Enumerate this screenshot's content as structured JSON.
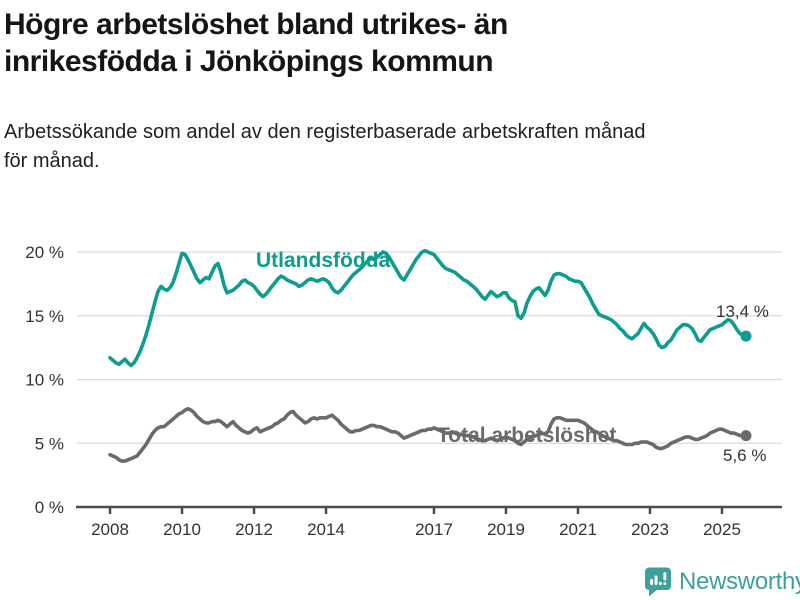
{
  "header": {
    "title_lines": [
      "Högre arbetslöshet bland utrikes- än",
      "inrikesfödda i Jönköpings kommun"
    ],
    "subtitle_lines": [
      "Arbetssökande som andel av den registerbaserade arbetskraften månad",
      "för månad."
    ]
  },
  "chart_data": {
    "type": "line",
    "title": "Högre arbetslöshet bland utrikes- än inrikesfödda i Jönköpings kommun",
    "subtitle": "Arbetssökande som andel av den registerbaserade arbetskraften månad för månad.",
    "unit": "%",
    "xlabel": "",
    "ylabel": "",
    "ylim": [
      0,
      20
    ],
    "x_range_years": [
      2008,
      2025.75
    ],
    "grid": true,
    "legend_position": "inline-annotations",
    "y_ticks": [
      {
        "value": 0,
        "label": "0 %"
      },
      {
        "value": 5,
        "label": "5 %"
      },
      {
        "value": 10,
        "label": "10 %"
      },
      {
        "value": 15,
        "label": "15 %"
      },
      {
        "value": 20,
        "label": "20 %"
      }
    ],
    "x_ticks": [
      {
        "value": 2008,
        "label": "2008"
      },
      {
        "value": 2010,
        "label": "2010"
      },
      {
        "value": 2012,
        "label": "2012"
      },
      {
        "value": 2014,
        "label": "2014"
      },
      {
        "value": 2017,
        "label": "2017"
      },
      {
        "value": 2019,
        "label": "2019"
      },
      {
        "value": 2021,
        "label": "2021"
      },
      {
        "value": 2023,
        "label": "2023"
      },
      {
        "value": 2025,
        "label": "2025"
      }
    ],
    "series": [
      {
        "name": "Utlandsfödda",
        "color": "#0d9c8e",
        "x_start_year": 2008,
        "x_step_months": 1,
        "end_label": "13,4 %",
        "end_value": 13.4,
        "values": [
          11.7,
          11.5,
          11.3,
          11.2,
          11.4,
          11.6,
          11.3,
          11.1,
          11.3,
          11.7,
          12.2,
          12.8,
          13.5,
          14.3,
          15.2,
          16.1,
          16.9,
          17.3,
          17.1,
          17.0,
          17.2,
          17.6,
          18.3,
          19.1,
          19.9,
          19.8,
          19.4,
          18.9,
          18.4,
          17.9,
          17.6,
          17.8,
          18.0,
          17.9,
          18.4,
          18.9,
          19.1,
          18.4,
          17.4,
          16.8,
          16.9,
          17.0,
          17.2,
          17.4,
          17.7,
          17.8,
          17.6,
          17.5,
          17.3,
          17.0,
          16.7,
          16.5,
          16.7,
          17.0,
          17.3,
          17.6,
          17.9,
          18.1,
          18.0,
          17.8,
          17.7,
          17.6,
          17.5,
          17.3,
          17.4,
          17.6,
          17.8,
          17.9,
          17.8,
          17.7,
          17.8,
          17.9,
          17.8,
          17.6,
          17.2,
          16.9,
          16.8,
          17.0,
          17.3,
          17.6,
          17.9,
          18.2,
          18.4,
          18.6,
          18.8,
          19.1,
          19.3,
          19.5,
          19.4,
          19.6,
          19.8,
          20.0,
          19.9,
          19.6,
          19.2,
          18.8,
          18.4,
          18.0,
          17.8,
          18.2,
          18.6,
          19.0,
          19.4,
          19.7,
          20.0,
          20.1,
          20.0,
          19.9,
          19.8,
          19.5,
          19.2,
          18.9,
          18.7,
          18.6,
          18.5,
          18.4,
          18.2,
          18.0,
          17.8,
          17.7,
          17.5,
          17.3,
          17.1,
          16.8,
          16.5,
          16.3,
          16.6,
          16.9,
          16.7,
          16.5,
          16.6,
          16.8,
          16.8,
          16.4,
          16.2,
          16.1,
          15.0,
          14.8,
          15.2,
          16.0,
          16.5,
          16.9,
          17.1,
          17.2,
          16.9,
          16.6,
          17.0,
          17.7,
          18.2,
          18.3,
          18.3,
          18.2,
          18.1,
          17.9,
          17.8,
          17.7,
          17.7,
          17.6,
          17.2,
          16.8,
          16.4,
          15.9,
          15.5,
          15.1,
          15.0,
          14.9,
          14.8,
          14.7,
          14.5,
          14.3,
          14.0,
          13.8,
          13.5,
          13.3,
          13.2,
          13.4,
          13.6,
          14.0,
          14.4,
          14.1,
          13.9,
          13.6,
          13.2,
          12.7,
          12.5,
          12.6,
          12.9,
          13.1,
          13.5,
          13.9,
          14.1,
          14.3,
          14.3,
          14.2,
          14.0,
          13.6,
          13.1,
          13.0,
          13.3,
          13.6,
          13.9,
          14.0,
          14.1,
          14.2,
          14.3,
          14.5,
          14.7,
          14.6,
          14.3,
          13.9,
          13.6,
          13.5,
          13.4
        ]
      },
      {
        "name": "Total arbetslöshet",
        "color": "#6a6a6e",
        "x_start_year": 2008,
        "x_step_months": 1,
        "end_label": "5,6 %",
        "end_value": 5.6,
        "values": [
          4.1,
          4.0,
          3.9,
          3.7,
          3.6,
          3.6,
          3.7,
          3.8,
          3.9,
          4.0,
          4.3,
          4.6,
          4.9,
          5.3,
          5.7,
          6.0,
          6.2,
          6.3,
          6.3,
          6.5,
          6.7,
          6.9,
          7.1,
          7.3,
          7.4,
          7.6,
          7.7,
          7.6,
          7.4,
          7.1,
          6.9,
          6.7,
          6.6,
          6.6,
          6.7,
          6.7,
          6.8,
          6.7,
          6.5,
          6.3,
          6.5,
          6.7,
          6.4,
          6.2,
          6.0,
          5.9,
          5.8,
          5.9,
          6.1,
          6.2,
          5.9,
          6.0,
          6.1,
          6.2,
          6.3,
          6.5,
          6.6,
          6.8,
          6.9,
          7.2,
          7.4,
          7.5,
          7.2,
          7.0,
          6.8,
          6.6,
          6.7,
          6.9,
          7.0,
          6.9,
          7.0,
          7.0,
          7.0,
          7.1,
          7.2,
          7.0,
          6.8,
          6.5,
          6.3,
          6.1,
          5.9,
          5.9,
          6.0,
          6.0,
          6.1,
          6.2,
          6.3,
          6.4,
          6.4,
          6.3,
          6.3,
          6.2,
          6.1,
          6.0,
          5.9,
          5.9,
          5.8,
          5.6,
          5.4,
          5.5,
          5.6,
          5.7,
          5.8,
          5.9,
          6.0,
          6.0,
          6.1,
          6.1,
          6.2,
          6.1,
          6.0,
          5.9,
          5.8,
          5.8,
          5.9,
          5.8,
          5.7,
          5.7,
          5.6,
          5.6,
          5.6,
          5.5,
          5.4,
          5.3,
          5.2,
          5.2,
          5.3,
          5.4,
          5.3,
          5.2,
          5.3,
          5.4,
          5.5,
          5.4,
          5.3,
          5.2,
          5.0,
          4.9,
          5.1,
          5.3,
          5.4,
          5.5,
          5.6,
          5.7,
          5.8,
          5.7,
          5.9,
          6.5,
          6.9,
          7.0,
          7.0,
          6.9,
          6.8,
          6.8,
          6.8,
          6.8,
          6.8,
          6.7,
          6.6,
          6.4,
          6.2,
          6.0,
          5.9,
          5.8,
          5.6,
          5.5,
          5.4,
          5.3,
          5.2,
          5.2,
          5.1,
          5.0,
          4.9,
          4.9,
          4.9,
          5.0,
          5.0,
          5.1,
          5.1,
          5.1,
          5.0,
          4.9,
          4.7,
          4.6,
          4.6,
          4.7,
          4.8,
          5.0,
          5.1,
          5.2,
          5.3,
          5.4,
          5.5,
          5.5,
          5.4,
          5.3,
          5.3,
          5.4,
          5.5,
          5.6,
          5.8,
          5.9,
          6.0,
          6.1,
          6.1,
          6.0,
          5.9,
          5.8,
          5.8,
          5.7,
          5.6,
          5.6,
          5.6
        ]
      }
    ]
  },
  "footer": {
    "brand": "Newsworthy",
    "brand_color": "#3da09a"
  }
}
